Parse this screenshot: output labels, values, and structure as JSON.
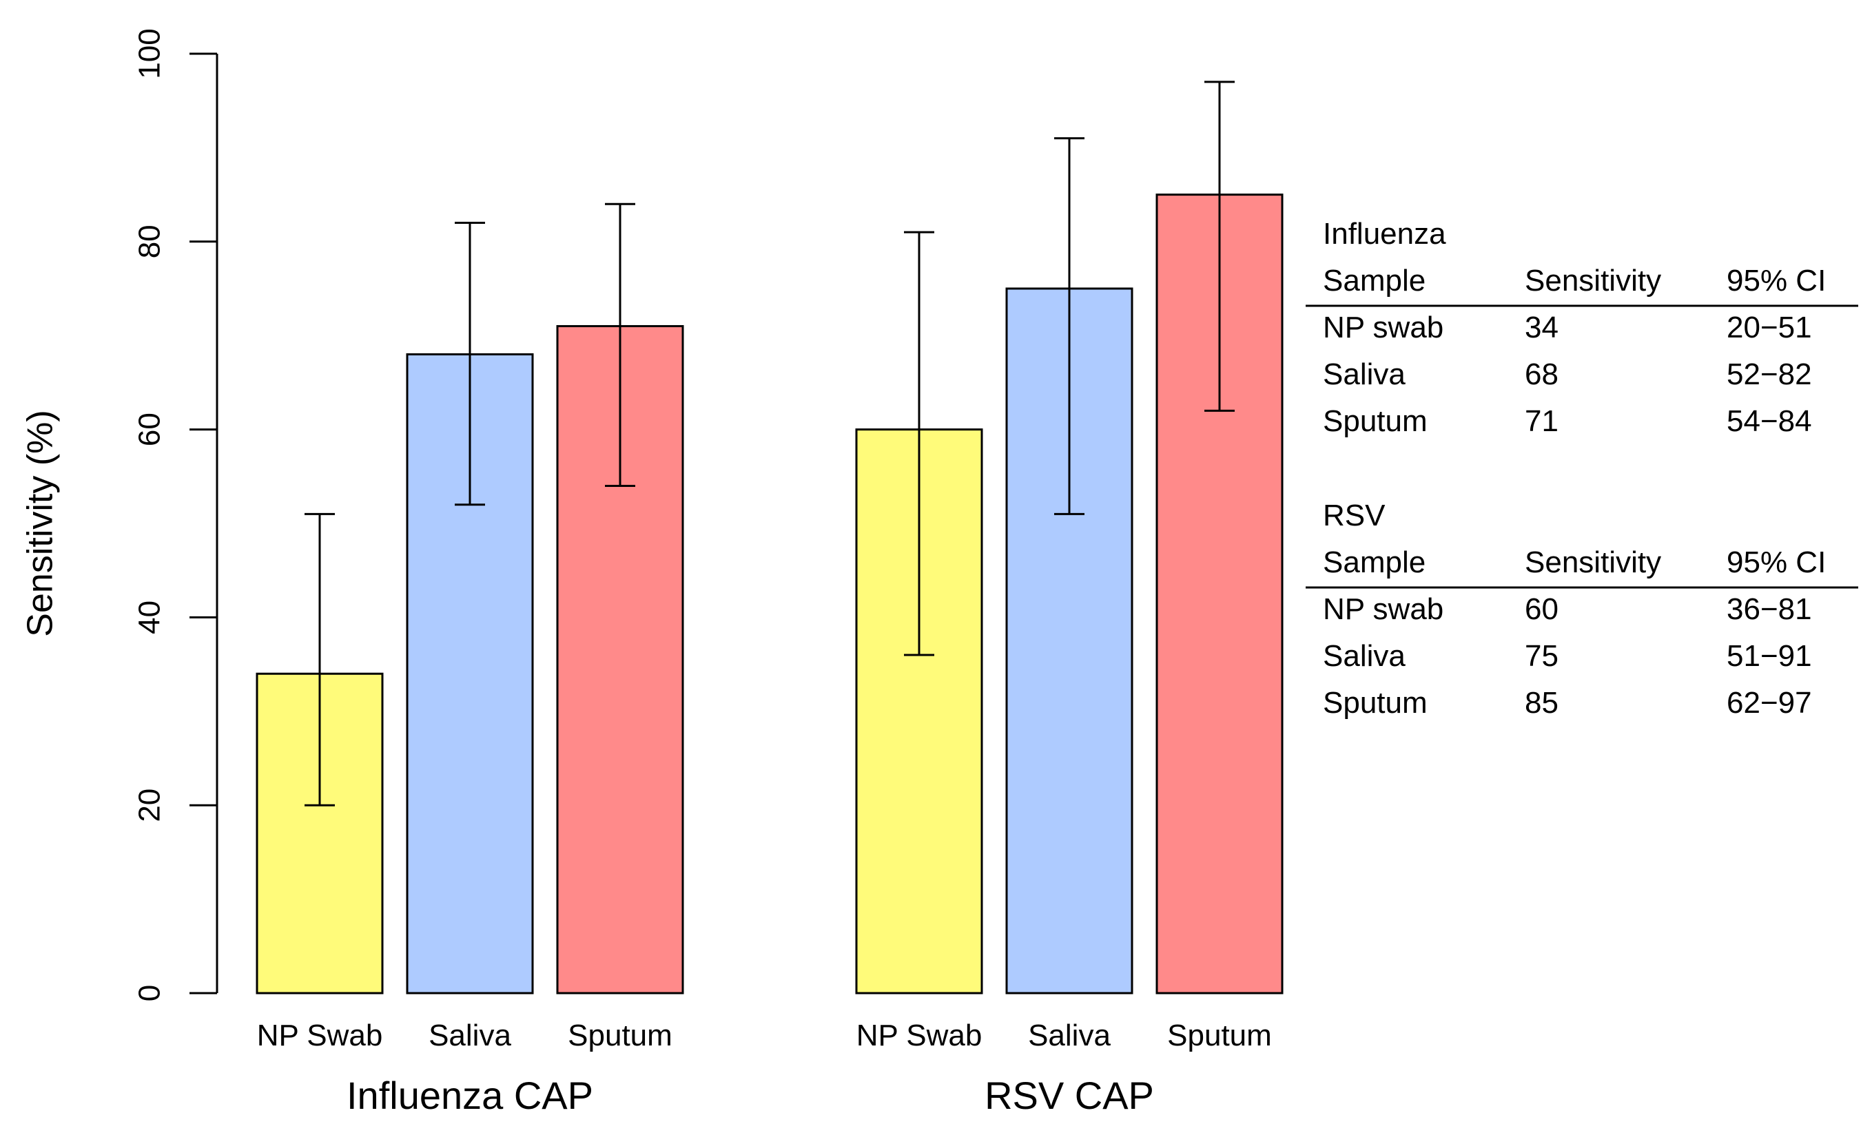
{
  "chart_data": {
    "type": "bar",
    "xlabel": "",
    "ylabel": "Sensitivity (%)",
    "ylim": [
      0,
      100
    ],
    "yticks": [
      0,
      20,
      40,
      60,
      80,
      100
    ],
    "grid": false,
    "groups": [
      {
        "name": "Influenza CAP",
        "categories": [
          "NP Swab",
          "Saliva",
          "Sputum"
        ],
        "values": [
          34,
          68,
          71
        ],
        "ci_low": [
          20,
          52,
          54
        ],
        "ci_high": [
          51,
          82,
          84
        ]
      },
      {
        "name": "RSV CAP",
        "categories": [
          "NP Swab",
          "Saliva",
          "Sputum"
        ],
        "values": [
          60,
          75,
          85
        ],
        "ci_low": [
          36,
          51,
          62
        ],
        "ci_high": [
          81,
          91,
          97
        ]
      }
    ],
    "bar_colors": [
      "#FFFB7A",
      "#AECBFF",
      "#FF8A8A"
    ],
    "tables": [
      {
        "title": "Influenza",
        "header": [
          "Sample",
          "Sensitivity",
          "95% CI"
        ],
        "rows": [
          [
            "NP swab",
            "34",
            "20−51"
          ],
          [
            "Saliva",
            "68",
            "52−82"
          ],
          [
            "Sputum",
            "71",
            "54−84"
          ]
        ]
      },
      {
        "title": "RSV",
        "header": [
          "Sample",
          "Sensitivity",
          "95% CI"
        ],
        "rows": [
          [
            "NP swab",
            "60",
            "36−81"
          ],
          [
            "Saliva",
            "75",
            "51−91"
          ],
          [
            "Sputum",
            "85",
            "62−97"
          ]
        ]
      }
    ]
  }
}
